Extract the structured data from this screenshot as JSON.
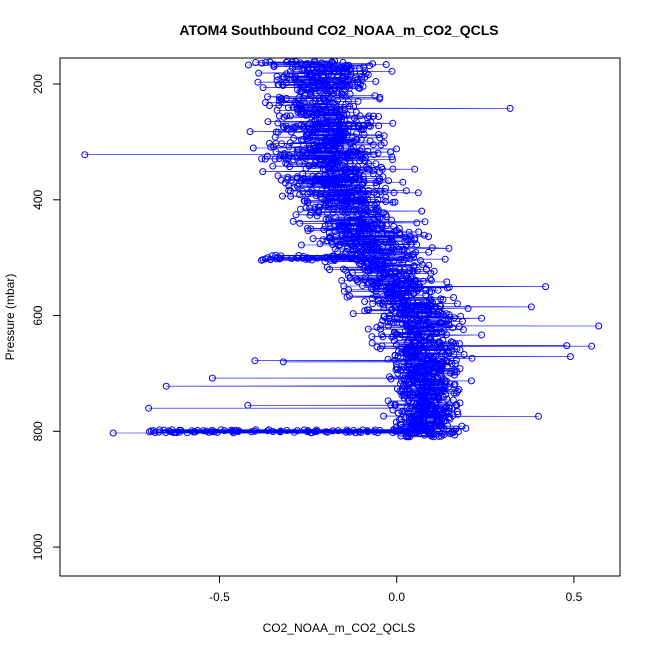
{
  "chart_data": {
    "type": "scatter",
    "title": "ATOM4 Southbound CO2_NOAA_m_CO2_QCLS",
    "xlabel": "CO2_NOAA_m_CO2_QCLS",
    "ylabel": "Pressure (mbar)",
    "xlim": [
      -0.95,
      0.63
    ],
    "ylim": [
      1050,
      155
    ],
    "y_reversed": true,
    "grid": false,
    "legend": "none",
    "x_ticks": [
      -0.5,
      0.0,
      0.5
    ],
    "x_tick_labels": [
      "-0.5",
      "0.0",
      "0.5"
    ],
    "y_ticks": [
      200,
      400,
      600,
      800,
      1000
    ],
    "y_tick_labels": [
      "200",
      "400",
      "600",
      "800",
      "1000"
    ],
    "marker": "open-circle",
    "connected_by_line": true,
    "color": "#0000ff",
    "series": [
      {
        "profile_bins": [
          {
            "pressure": 170,
            "x_center": -0.22,
            "x_spread": 0.2
          },
          {
            "pressure": 200,
            "x_center": -0.21,
            "x_spread": 0.19
          },
          {
            "pressure": 250,
            "x_center": -0.22,
            "x_spread": 0.19
          },
          {
            "pressure": 300,
            "x_center": -0.2,
            "x_spread": 0.19
          },
          {
            "pressure": 350,
            "x_center": -0.18,
            "x_spread": 0.19
          },
          {
            "pressure": 400,
            "x_center": -0.14,
            "x_spread": 0.19
          },
          {
            "pressure": 450,
            "x_center": -0.11,
            "x_spread": 0.19
          },
          {
            "pressure": 500,
            "x_center": -0.06,
            "x_spread": 0.19
          },
          {
            "pressure": 550,
            "x_center": 0.0,
            "x_spread": 0.17
          },
          {
            "pressure": 600,
            "x_center": 0.05,
            "x_spread": 0.16
          },
          {
            "pressure": 650,
            "x_center": 0.08,
            "x_spread": 0.14
          },
          {
            "pressure": 700,
            "x_center": 0.09,
            "x_spread": 0.12
          },
          {
            "pressure": 750,
            "x_center": 0.09,
            "x_spread": 0.11
          },
          {
            "pressure": 800,
            "x_center": 0.08,
            "x_spread": 0.12
          }
        ],
        "outliers": [
          {
            "x": -0.88,
            "y": 322
          },
          {
            "x": 0.32,
            "y": 242
          },
          {
            "x": 0.57,
            "y": 618
          },
          {
            "x": 0.55,
            "y": 653
          },
          {
            "x": 0.49,
            "y": 671
          },
          {
            "x": 0.42,
            "y": 550
          },
          {
            "x": 0.38,
            "y": 585
          },
          {
            "x": -0.8,
            "y": 803
          },
          {
            "x": -0.7,
            "y": 760
          },
          {
            "x": -0.65,
            "y": 722
          },
          {
            "x": -0.52,
            "y": 708
          },
          {
            "x": -0.42,
            "y": 755
          },
          {
            "x": -0.4,
            "y": 678
          },
          {
            "x": -0.32,
            "y": 680
          },
          {
            "x": 0.4,
            "y": 774
          },
          {
            "x": 0.48,
            "y": 652
          }
        ]
      }
    ]
  }
}
